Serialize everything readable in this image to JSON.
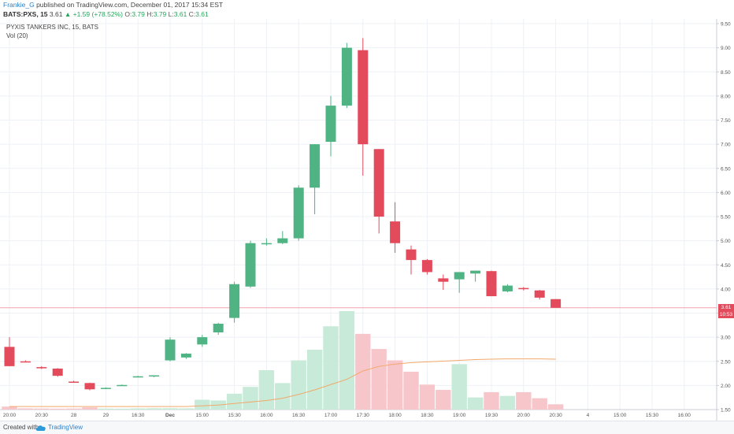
{
  "header": {
    "author": "Frankie_G",
    "published_text": "published on TradingView.com, December 01, 2017 15:34 EST",
    "symbol": "BATS:PXS, 15",
    "last": "3.61",
    "change_arrow": "▲",
    "change": "+1.59 (+78.52%)",
    "o_label": "O:",
    "o_value": "3.79",
    "h_label": "H:",
    "h_value": "3.79",
    "l_label": "L:",
    "l_value": "3.61",
    "c_label": "C:",
    "c_value": "3.61"
  },
  "legend": {
    "title": "PYXIS TANKERS INC, 15, BATS",
    "indicator": "Vol (20)"
  },
  "footer": {
    "created_with": "Created with",
    "brand": "TradingView"
  },
  "price_tags": {
    "last_price": "3.61",
    "countdown": "10:53"
  },
  "colors": {
    "up": "#4fb383",
    "down": "#e34a5b",
    "up_volume": "#c8ead8",
    "down_volume": "#f7c6cb",
    "ma_line": "#f2a86a",
    "grid": "#edf0f5",
    "price_line": "#f3a4ab"
  },
  "chart_data": {
    "type": "candlestick",
    "title": "PYXIS TANKERS INC, 15, BATS",
    "y_axis_ticks": [
      "1.50",
      "2.00",
      "2.50",
      "3.00",
      "3.50",
      "4.00",
      "4.50",
      "5.00",
      "5.50",
      "6.00",
      "6.50",
      "7.00",
      "7.50",
      "8.00",
      "8.50",
      "9.00",
      "9.50"
    ],
    "ylim": [
      1.5,
      9.5
    ],
    "x_axis_ticks": [
      {
        "label": "20:00",
        "bar": 0
      },
      {
        "label": "20:30",
        "bar": 2
      },
      {
        "label": "28",
        "bar": 4
      },
      {
        "label": "29",
        "bar": 6
      },
      {
        "label": "16:30",
        "bar": 8
      },
      {
        "label": "Dec",
        "bar": 10
      },
      {
        "label": "15:00",
        "bar": 12
      },
      {
        "label": "15:30",
        "bar": 14
      },
      {
        "label": "16:00",
        "bar": 16
      },
      {
        "label": "16:30",
        "bar": 18
      },
      {
        "label": "17:00",
        "bar": 20
      },
      {
        "label": "17:30",
        "bar": 22
      },
      {
        "label": "18:00",
        "bar": 24
      },
      {
        "label": "18:30",
        "bar": 26
      },
      {
        "label": "19:00",
        "bar": 28
      },
      {
        "label": "19:30",
        "bar": 30
      },
      {
        "label": "20:00",
        "bar": 32
      },
      {
        "label": "20:30",
        "bar": 34
      },
      {
        "label": "4",
        "bar": 36
      },
      {
        "label": "15:00",
        "bar": 38
      },
      {
        "label": "15:30",
        "bar": 40
      },
      {
        "label": "16:00",
        "bar": 42
      }
    ],
    "candles": [
      {
        "o": 2.8,
        "h": 3.0,
        "l": 2.4,
        "c": 2.4
      },
      {
        "o": 2.5,
        "h": 2.52,
        "l": 2.48,
        "c": 2.49
      },
      {
        "o": 2.38,
        "h": 2.4,
        "l": 2.34,
        "c": 2.36
      },
      {
        "o": 2.35,
        "h": 2.36,
        "l": 2.18,
        "c": 2.2
      },
      {
        "o": 2.08,
        "h": 2.1,
        "l": 2.06,
        "c": 2.07
      },
      {
        "o": 2.05,
        "h": 2.06,
        "l": 1.9,
        "c": 1.92
      },
      {
        "o": 1.94,
        "h": 1.96,
        "l": 1.93,
        "c": 1.95
      },
      {
        "o": 2.0,
        "h": 2.02,
        "l": 1.99,
        "c": 2.01
      },
      {
        "o": 2.18,
        "h": 2.2,
        "l": 2.17,
        "c": 2.19
      },
      {
        "o": 2.19,
        "h": 2.21,
        "l": 2.17,
        "c": 2.21
      },
      {
        "o": 2.52,
        "h": 3.0,
        "l": 2.5,
        "c": 2.95
      },
      {
        "o": 2.58,
        "h": 2.67,
        "l": 2.55,
        "c": 2.66
      },
      {
        "o": 2.85,
        "h": 3.05,
        "l": 2.8,
        "c": 3.0
      },
      {
        "o": 3.1,
        "h": 3.3,
        "l": 3.05,
        "c": 3.28
      },
      {
        "o": 3.4,
        "h": 4.15,
        "l": 3.3,
        "c": 4.1
      },
      {
        "o": 4.05,
        "h": 5.0,
        "l": 4.02,
        "c": 4.95
      },
      {
        "o": 4.93,
        "h": 5.05,
        "l": 4.9,
        "c": 4.95
      },
      {
        "o": 4.95,
        "h": 5.2,
        "l": 4.93,
        "c": 5.05
      },
      {
        "o": 5.05,
        "h": 6.15,
        "l": 5.0,
        "c": 6.1
      },
      {
        "o": 6.1,
        "h": 7.0,
        "l": 5.55,
        "c": 7.0
      },
      {
        "o": 7.05,
        "h": 8.0,
        "l": 6.75,
        "c": 7.8
      },
      {
        "o": 7.8,
        "h": 9.1,
        "l": 7.75,
        "c": 9.0
      },
      {
        "o": 8.95,
        "h": 9.2,
        "l": 6.35,
        "c": 7.0
      },
      {
        "o": 6.9,
        "h": 6.9,
        "l": 5.15,
        "c": 5.5
      },
      {
        "o": 5.4,
        "h": 5.8,
        "l": 4.75,
        "c": 4.95
      },
      {
        "o": 4.82,
        "h": 4.9,
        "l": 4.3,
        "c": 4.6
      },
      {
        "o": 4.6,
        "h": 4.62,
        "l": 4.3,
        "c": 4.35
      },
      {
        "o": 4.22,
        "h": 4.3,
        "l": 3.98,
        "c": 4.15
      },
      {
        "o": 4.2,
        "h": 4.35,
        "l": 3.92,
        "c": 4.35
      },
      {
        "o": 4.32,
        "h": 4.38,
        "l": 4.15,
        "c": 4.38
      },
      {
        "o": 4.37,
        "h": 4.38,
        "l": 3.85,
        "c": 3.85
      },
      {
        "o": 3.95,
        "h": 4.1,
        "l": 3.93,
        "c": 4.07
      },
      {
        "o": 4.02,
        "h": 4.04,
        "l": 3.97,
        "c": 4.0
      },
      {
        "o": 3.97,
        "h": 3.98,
        "l": 3.78,
        "c": 3.82
      },
      {
        "o": 3.79,
        "h": 3.79,
        "l": 3.61,
        "c": 3.61
      }
    ],
    "volume": [
      40,
      16,
      14,
      12,
      14,
      30,
      14,
      12,
      16,
      18,
      18,
      16,
      130,
      120,
      210,
      300,
      520,
      350,
      650,
      790,
      1100,
      1300,
      1000,
      800,
      650,
      500,
      330,
      260,
      600,
      160,
      230,
      180,
      230,
      150,
      70
    ],
    "volume_ma": [
      40,
      40,
      40,
      40,
      40,
      40,
      40,
      40,
      40,
      40,
      40,
      40,
      50,
      60,
      80,
      100,
      120,
      150,
      200,
      260,
      330,
      400,
      510,
      570,
      600,
      620,
      630,
      640,
      650,
      660,
      665,
      670,
      670,
      670,
      665
    ],
    "last_price": 3.61
  }
}
